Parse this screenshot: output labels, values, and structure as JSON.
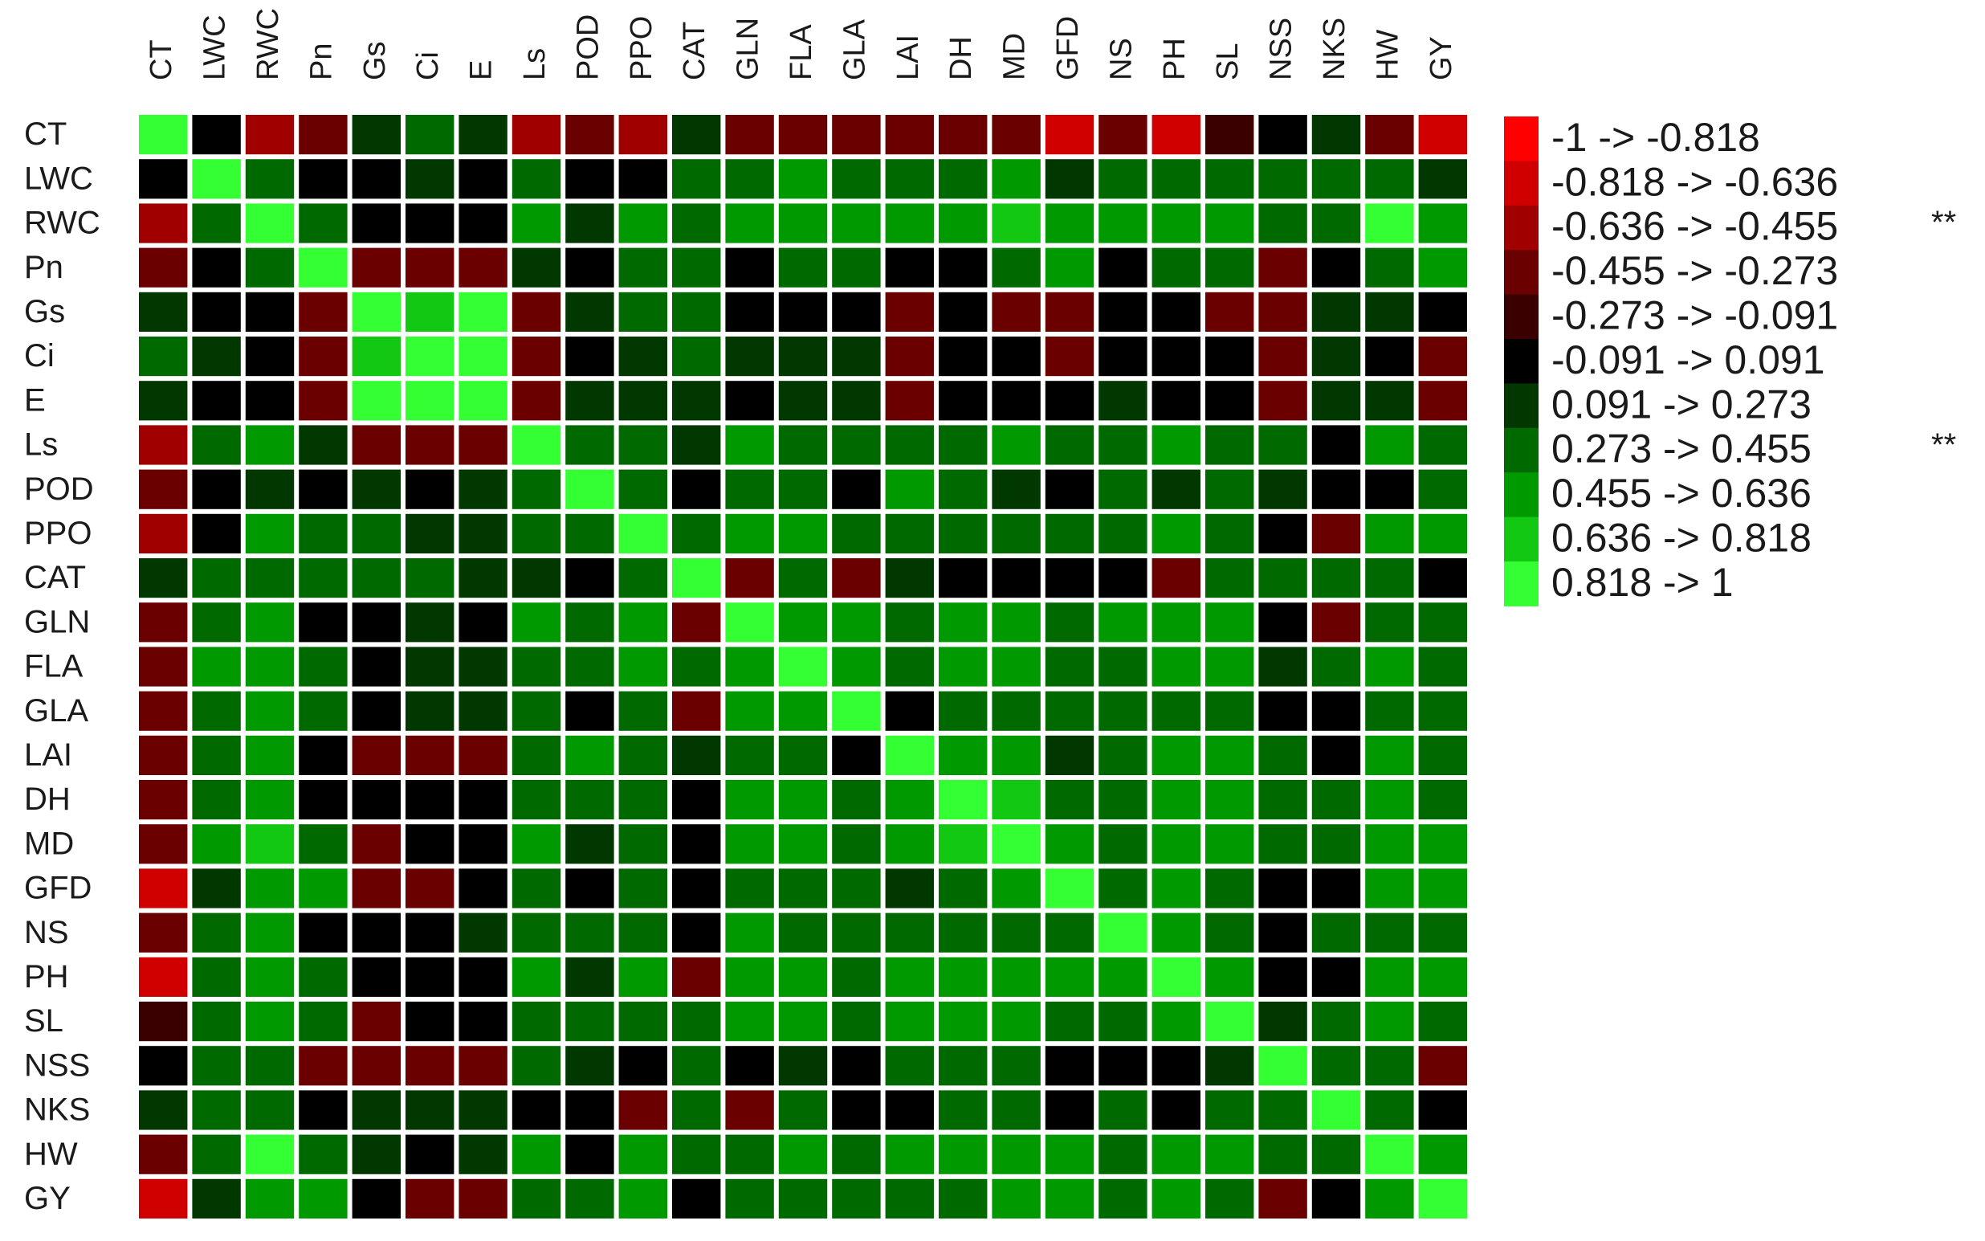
{
  "chart_data": {
    "type": "heatmap",
    "variables": [
      "CT",
      "LWC",
      "RWC",
      "Pn",
      "Gs",
      "Ci",
      "E",
      "Ls",
      "POD",
      "PPO",
      "CAT",
      "GLN",
      "FLA",
      "GLA",
      "LAI",
      "DH",
      "MD",
      "GFD",
      "NS",
      "PH",
      "SL",
      "NSS",
      "NKS",
      "HW",
      "GY"
    ],
    "matrix": [
      [
        1,
        0,
        -0.545,
        -0.364,
        0.182,
        0.364,
        0.182,
        -0.545,
        -0.364,
        -0.545,
        0.182,
        -0.364,
        -0.364,
        -0.364,
        -0.364,
        -0.364,
        -0.364,
        -0.727,
        -0.364,
        -0.727,
        -0.182,
        0,
        0.182,
        -0.364,
        -0.727
      ],
      [
        0,
        1,
        0.364,
        0,
        0,
        0.182,
        0,
        0.364,
        0,
        0,
        0.364,
        0.364,
        0.545,
        0.364,
        0.364,
        0.364,
        0.545,
        0.182,
        0.364,
        0.364,
        0.364,
        0.364,
        0.364,
        0.364,
        0.182
      ],
      [
        -0.545,
        0.364,
        1,
        0.364,
        0,
        0,
        0,
        0.545,
        0.182,
        0.545,
        0.364,
        0.545,
        0.545,
        0.545,
        0.545,
        0.545,
        0.727,
        0.545,
        0.545,
        0.545,
        0.545,
        0.364,
        0.364,
        0.909,
        0.545
      ],
      [
        -0.364,
        0,
        0.364,
        1,
        -0.364,
        -0.364,
        -0.364,
        0.182,
        0,
        0.364,
        0.364,
        0,
        0.364,
        0.364,
        0,
        0,
        0.364,
        0.545,
        0,
        0.364,
        0.364,
        -0.364,
        0,
        0.364,
        0.545
      ],
      [
        0.182,
        0,
        0,
        -0.364,
        1,
        0.727,
        0.909,
        -0.364,
        0.182,
        0.364,
        0.364,
        0,
        0,
        0,
        -0.364,
        0,
        -0.364,
        -0.364,
        0,
        0,
        -0.364,
        -0.364,
        0.182,
        0.182,
        0
      ],
      [
        0.364,
        0.182,
        0,
        -0.364,
        0.727,
        1,
        0.909,
        -0.364,
        0,
        0.182,
        0.364,
        0.182,
        0.182,
        0.182,
        -0.364,
        0,
        0,
        -0.364,
        0,
        0,
        0,
        -0.364,
        0.182,
        0,
        -0.364
      ],
      [
        0.182,
        0,
        0,
        -0.364,
        0.909,
        0.909,
        1,
        -0.364,
        0.182,
        0.182,
        0.182,
        0,
        0.182,
        0.182,
        -0.364,
        0,
        0,
        0,
        0.182,
        0,
        0,
        -0.364,
        0.182,
        0.182,
        -0.364
      ],
      [
        -0.545,
        0.364,
        0.545,
        0.182,
        -0.364,
        -0.364,
        -0.364,
        1,
        0.364,
        0.364,
        0.182,
        0.545,
        0.364,
        0.364,
        0.364,
        0.364,
        0.545,
        0.364,
        0.364,
        0.545,
        0.364,
        0.364,
        0,
        0.545,
        0.364
      ],
      [
        -0.364,
        0,
        0.182,
        0,
        0.182,
        0,
        0.182,
        0.364,
        1,
        0.364,
        0,
        0.364,
        0.364,
        0,
        0.545,
        0.364,
        0.182,
        0,
        0.364,
        0.182,
        0.364,
        0.182,
        0,
        0,
        0.364
      ],
      [
        -0.545,
        0,
        0.545,
        0.364,
        0.364,
        0.182,
        0.182,
        0.364,
        0.364,
        1,
        0.364,
        0.545,
        0.545,
        0.364,
        0.364,
        0.364,
        0.364,
        0.364,
        0.364,
        0.545,
        0.364,
        0,
        -0.364,
        0.545,
        0.545
      ],
      [
        0.182,
        0.364,
        0.364,
        0.364,
        0.364,
        0.364,
        0.182,
        0.182,
        0,
        0.364,
        1,
        -0.364,
        0.364,
        -0.364,
        0.182,
        0,
        0,
        0,
        0,
        -0.364,
        0.364,
        0.364,
        0.364,
        0.364,
        0
      ],
      [
        -0.364,
        0.364,
        0.545,
        0,
        0,
        0.182,
        0,
        0.545,
        0.364,
        0.545,
        -0.364,
        1,
        0.545,
        0.545,
        0.364,
        0.545,
        0.545,
        0.364,
        0.545,
        0.545,
        0.545,
        0,
        -0.364,
        0.364,
        0.364
      ],
      [
        -0.364,
        0.545,
        0.545,
        0.364,
        0,
        0.182,
        0.182,
        0.364,
        0.364,
        0.545,
        0.364,
        0.545,
        1,
        0.545,
        0.364,
        0.545,
        0.545,
        0.364,
        0.364,
        0.545,
        0.545,
        0.182,
        0.364,
        0.545,
        0.364
      ],
      [
        -0.364,
        0.364,
        0.545,
        0.364,
        0,
        0.182,
        0.182,
        0.364,
        0,
        0.364,
        -0.364,
        0.545,
        0.545,
        1,
        0,
        0.364,
        0.364,
        0.364,
        0.364,
        0.364,
        0.364,
        0,
        0,
        0.364,
        0.364
      ],
      [
        -0.364,
        0.364,
        0.545,
        0,
        -0.364,
        -0.364,
        -0.364,
        0.364,
        0.545,
        0.364,
        0.182,
        0.364,
        0.364,
        0,
        1,
        0.545,
        0.545,
        0.182,
        0.364,
        0.545,
        0.545,
        0.364,
        0,
        0.545,
        0.364
      ],
      [
        -0.364,
        0.364,
        0.545,
        0,
        0,
        0,
        0,
        0.364,
        0.364,
        0.364,
        0,
        0.545,
        0.545,
        0.364,
        0.545,
        1,
        0.727,
        0.364,
        0.364,
        0.545,
        0.545,
        0.364,
        0.364,
        0.545,
        0.364
      ],
      [
        -0.364,
        0.545,
        0.727,
        0.364,
        -0.364,
        0,
        0,
        0.545,
        0.182,
        0.364,
        0,
        0.545,
        0.545,
        0.364,
        0.545,
        0.727,
        1,
        0.545,
        0.364,
        0.545,
        0.545,
        0.364,
        0.364,
        0.545,
        0.545
      ],
      [
        -0.727,
        0.182,
        0.545,
        0.545,
        -0.364,
        -0.364,
        0,
        0.364,
        0,
        0.364,
        0,
        0.364,
        0.364,
        0.364,
        0.182,
        0.364,
        0.545,
        1,
        0.364,
        0.545,
        0.364,
        0,
        0,
        0.545,
        0.545
      ],
      [
        -0.364,
        0.364,
        0.545,
        0,
        0,
        0,
        0.182,
        0.364,
        0.364,
        0.364,
        0,
        0.545,
        0.364,
        0.364,
        0.364,
        0.364,
        0.364,
        0.364,
        1,
        0.545,
        0.364,
        0,
        0.364,
        0.364,
        0.364
      ],
      [
        -0.727,
        0.364,
        0.545,
        0.364,
        0,
        0,
        0,
        0.545,
        0.182,
        0.545,
        -0.364,
        0.545,
        0.545,
        0.364,
        0.545,
        0.545,
        0.545,
        0.545,
        0.545,
        1,
        0.545,
        0,
        0,
        0.545,
        0.545
      ],
      [
        -0.182,
        0.364,
        0.545,
        0.364,
        -0.364,
        0,
        0,
        0.364,
        0.364,
        0.364,
        0.364,
        0.545,
        0.545,
        0.364,
        0.545,
        0.545,
        0.545,
        0.364,
        0.364,
        0.545,
        1,
        0.182,
        0.364,
        0.545,
        0.364
      ],
      [
        0,
        0.364,
        0.364,
        -0.364,
        -0.364,
        -0.364,
        -0.364,
        0.364,
        0.182,
        0,
        0.364,
        0,
        0.182,
        0,
        0.364,
        0.364,
        0.364,
        0,
        0,
        0,
        0.182,
        1,
        0.364,
        0.364,
        -0.364
      ],
      [
        0.182,
        0.364,
        0.364,
        0,
        0.182,
        0.182,
        0.182,
        0,
        0,
        -0.364,
        0.364,
        -0.364,
        0.364,
        0,
        0,
        0.364,
        0.364,
        0,
        0.364,
        0,
        0.364,
        0.364,
        1,
        0.364,
        0
      ],
      [
        -0.364,
        0.364,
        0.909,
        0.364,
        0.182,
        0,
        0.182,
        0.545,
        0,
        0.545,
        0.364,
        0.364,
        0.545,
        0.364,
        0.545,
        0.545,
        0.545,
        0.545,
        0.364,
        0.545,
        0.545,
        0.364,
        0.364,
        1,
        0.545
      ],
      [
        -0.727,
        0.182,
        0.545,
        0.545,
        0,
        -0.364,
        -0.364,
        0.364,
        0.364,
        0.545,
        0,
        0.364,
        0.364,
        0.364,
        0.364,
        0.364,
        0.545,
        0.545,
        0.364,
        0.545,
        0.364,
        -0.364,
        0,
        0.545,
        1
      ]
    ],
    "bins": [
      -1,
      -0.818,
      -0.636,
      -0.455,
      -0.273,
      -0.091,
      0.091,
      0.273,
      0.455,
      0.636,
      0.818,
      1
    ],
    "legend": [
      {
        "label": "-1 -> -0.818",
        "color": "#ff0000"
      },
      {
        "label": "-0.818 -> -0.636",
        "color": "#d00000"
      },
      {
        "label": "-0.636 -> -0.455",
        "color": "#a00000",
        "note": "**"
      },
      {
        "label": "-0.455 -> -0.273",
        "color": "#6a0000"
      },
      {
        "label": "-0.273 -> -0.091",
        "color": "#3a0000"
      },
      {
        "label": "-0.091 -> 0.091",
        "color": "#000000"
      },
      {
        "label": "0.091 -> 0.273",
        "color": "#003800"
      },
      {
        "label": "0.273 -> 0.455",
        "color": "#006a00",
        "note": "**"
      },
      {
        "label": "0.455 -> 0.636",
        "color": "#009a00"
      },
      {
        "label": "0.636 -> 0.818",
        "color": "#12c812"
      },
      {
        "label": "0.818 -> 1",
        "color": "#33ff33"
      }
    ]
  }
}
